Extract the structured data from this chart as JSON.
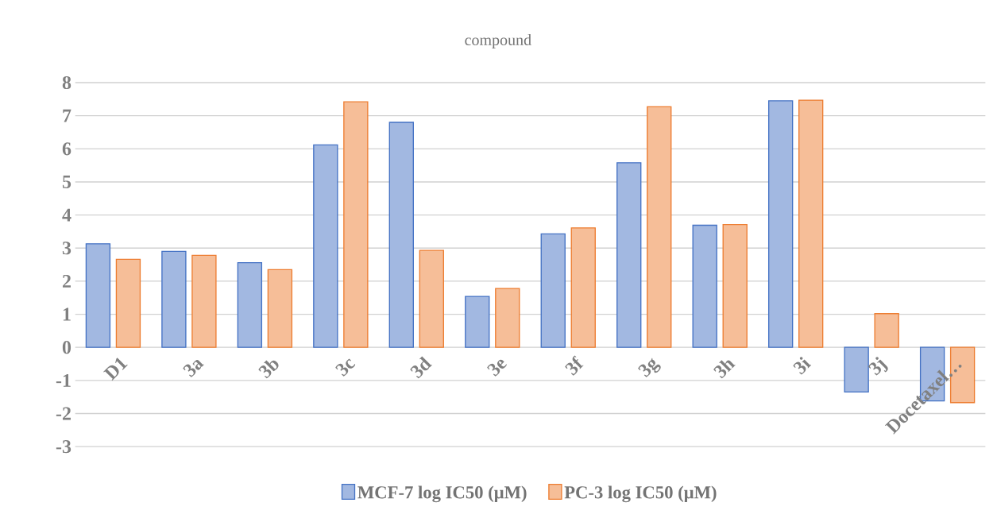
{
  "chart_data": {
    "type": "bar",
    "title": "compound",
    "categories": [
      "D1",
      "3a",
      "3b",
      "3c",
      "3d",
      "3e",
      "3f",
      "3g",
      "3h",
      "3i",
      "3j",
      "Docetaxel…"
    ],
    "series": [
      {
        "name": "MCF-7 log IC50 (μM)",
        "color": "#4472c4",
        "values": [
          3.13,
          2.9,
          2.56,
          6.12,
          6.8,
          1.54,
          3.43,
          5.58,
          3.69,
          7.45,
          -1.35,
          -1.62
        ]
      },
      {
        "name": "PC-3 log IC50 (μM)",
        "color": "#ed7d31",
        "values": [
          2.66,
          2.78,
          2.35,
          7.42,
          2.93,
          1.78,
          3.61,
          7.27,
          3.71,
          7.47,
          1.02,
          -1.67
        ]
      }
    ],
    "ylim": [
      -3,
      8
    ],
    "yticks": [
      -3,
      -2,
      -1,
      0,
      1,
      2,
      3,
      4,
      5,
      6,
      7,
      8
    ],
    "grid": "y",
    "legend": "bottom"
  }
}
